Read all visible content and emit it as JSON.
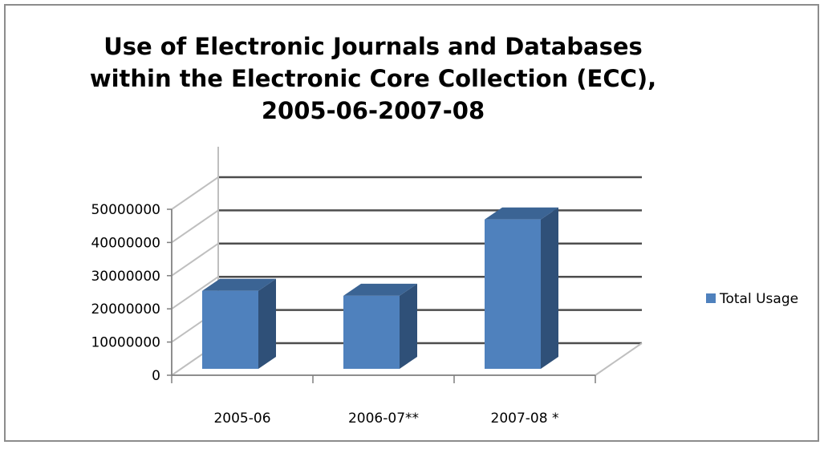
{
  "chart_data": {
    "type": "bar",
    "title_lines": [
      "Use of Electronic Journals and Databases",
      "within the Electronic Core Collection (ECC),",
      "2005-06-2007-08"
    ],
    "categories": [
      "2005-06",
      "2006-07**",
      "2007-08 *"
    ],
    "series": [
      {
        "name": "Total Usage",
        "values": [
          23500000,
          22000000,
          45000000
        ]
      }
    ],
    "ylim": [
      0,
      50000000
    ],
    "yticks": [
      0,
      10000000,
      20000000,
      30000000,
      40000000,
      50000000
    ],
    "ytick_labels": [
      "0",
      "10000000",
      "20000000",
      "30000000",
      "40000000",
      "50000000"
    ],
    "xlabel": "",
    "ylabel": "",
    "grid": true,
    "legend_position": "right",
    "style": "3d-column"
  },
  "colors": {
    "bar_front": "#4f81bd",
    "bar_side": "#2f5078",
    "bar_top": "#3b6494",
    "grid": "#4d4d4d",
    "wall_edge": "#bfbfbf",
    "frame": "#8c8c8c"
  }
}
